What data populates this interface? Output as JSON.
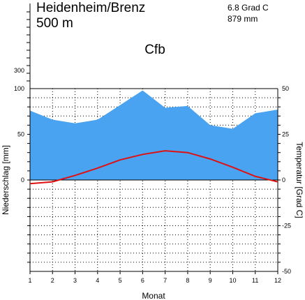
{
  "header": {
    "station": "Heidenheim/Brenz",
    "elevation": "500 m",
    "mean_temperature": "6.8 Grad C",
    "annual_precipitation": "879 mm",
    "climate_class": "Cfb"
  },
  "chart_data": {
    "type": "area",
    "title": "",
    "xlabel": "Monat",
    "ylabel_left": "Niederschlag [mm]",
    "ylabel_right": "Temperatur [Grad C]",
    "categories": [
      "1",
      "2",
      "3",
      "4",
      "5",
      "6",
      "7",
      "8",
      "9",
      "10",
      "11",
      "12"
    ],
    "precip_ticks": [
      "300",
      "100",
      "50",
      "0"
    ],
    "temp_ticks": [
      "50",
      "25",
      "0",
      "-25",
      "-50"
    ],
    "ylim_precip": [
      0,
      100
    ],
    "ylim_temp": [
      -50,
      50
    ],
    "grid": true,
    "series": [
      {
        "name": "Niederschlag",
        "unit": "mm",
        "color": "#4aa3f0",
        "values": [
          76,
          66,
          62,
          66,
          82,
          98,
          79,
          81,
          60,
          56,
          73,
          77
        ]
      },
      {
        "name": "Temperatur",
        "unit": "Grad C",
        "color": "#dd1111",
        "values": [
          -2.0,
          -1.0,
          2.5,
          6.5,
          11.0,
          14.0,
          16.0,
          15.0,
          11.5,
          7.0,
          2.0,
          -1.0
        ]
      }
    ]
  }
}
